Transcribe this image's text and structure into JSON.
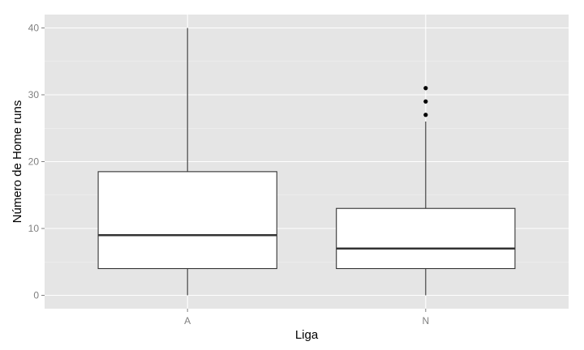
{
  "chart_data": {
    "type": "box",
    "xlabel": "Liga",
    "ylabel": "Número de Home runs",
    "categories": [
      "A",
      "N"
    ],
    "ylim": [
      -2,
      42
    ],
    "yticks": [
      0,
      10,
      20,
      30,
      40
    ],
    "grid": true,
    "boxes": [
      {
        "category": "A",
        "min": 0,
        "q1": 4,
        "median": 9,
        "q3": 18.5,
        "max": 40,
        "outliers": []
      },
      {
        "category": "N",
        "min": 0,
        "q1": 4,
        "median": 7,
        "q3": 13,
        "max": 26,
        "outliers": [
          27,
          29,
          31
        ]
      }
    ],
    "colors": {
      "panel_background": "#e5e5e5",
      "grid_major": "#ffffff",
      "box_fill": "#ffffff",
      "box_stroke": "#333333",
      "median_stroke": "#333333",
      "outlier": "#000000"
    }
  }
}
